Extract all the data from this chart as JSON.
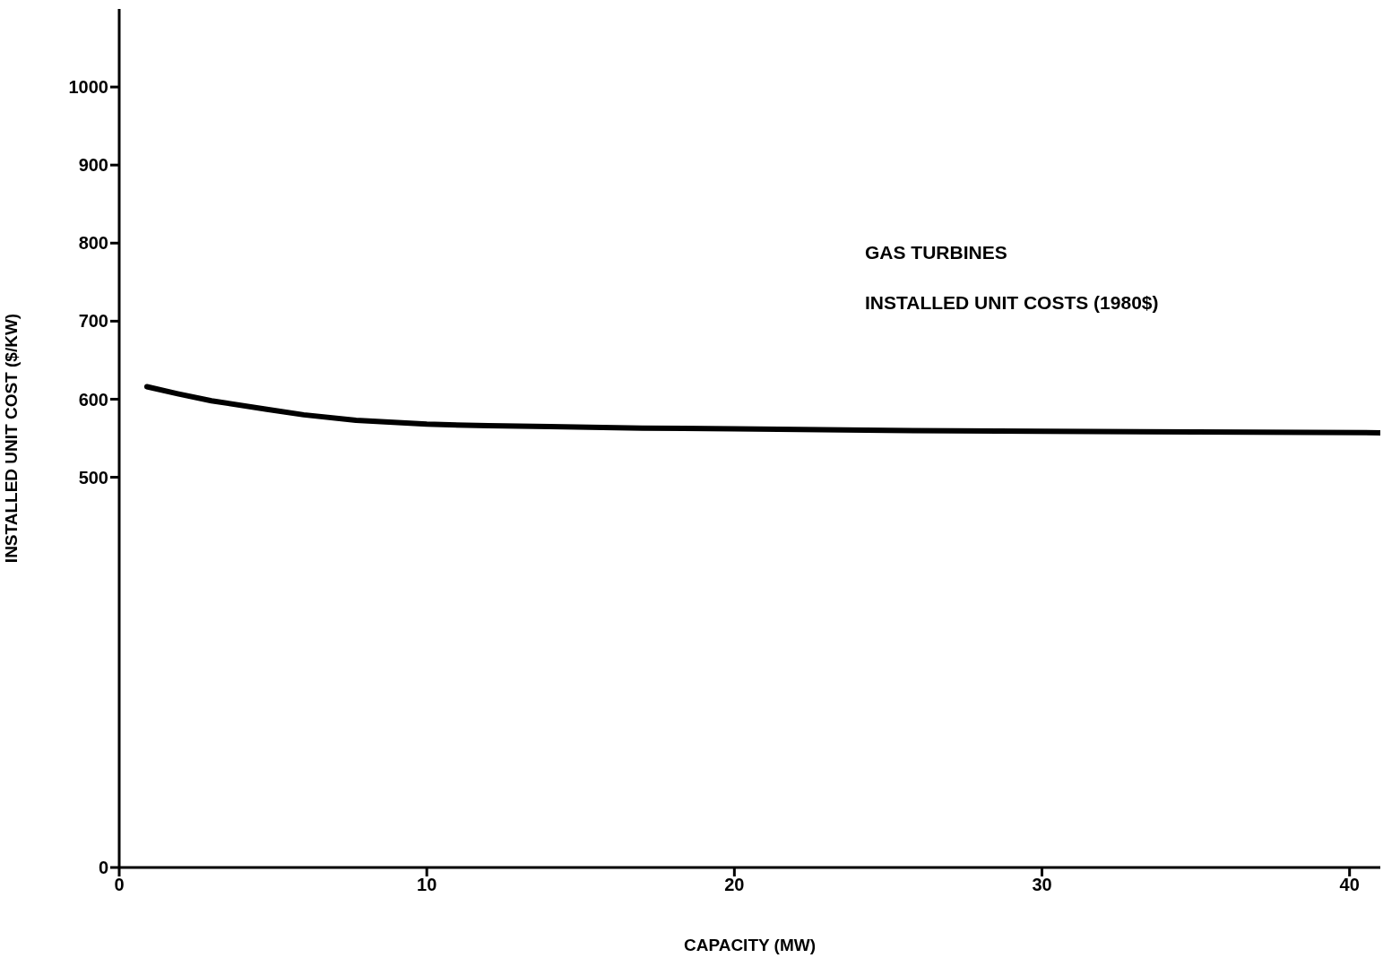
{
  "chart_data": {
    "type": "line",
    "xlabel": "CAPACITY (MW)",
    "ylabel": "INSTALLED UNIT COST ($/KW)",
    "annotations": [
      "GAS TURBINES",
      "INSTALLED UNIT COSTS (1980$)"
    ],
    "x": [
      0.9,
      1.9,
      3,
      4.8,
      6,
      7.7,
      10,
      12,
      14,
      17,
      20,
      25,
      30,
      35,
      41
    ],
    "values": [
      616,
      607,
      598,
      587,
      580,
      573,
      568,
      566,
      565,
      563,
      562,
      560,
      559,
      558,
      557
    ],
    "color": "#000000",
    "marker": "none",
    "line_style": "solid",
    "grid": false,
    "xlim": [
      0,
      41
    ],
    "xticks": [
      0,
      10,
      20,
      30,
      40
    ],
    "ylim": [
      0,
      1100
    ],
    "yticks": [
      0,
      500,
      600,
      700,
      800,
      900,
      1000
    ]
  }
}
